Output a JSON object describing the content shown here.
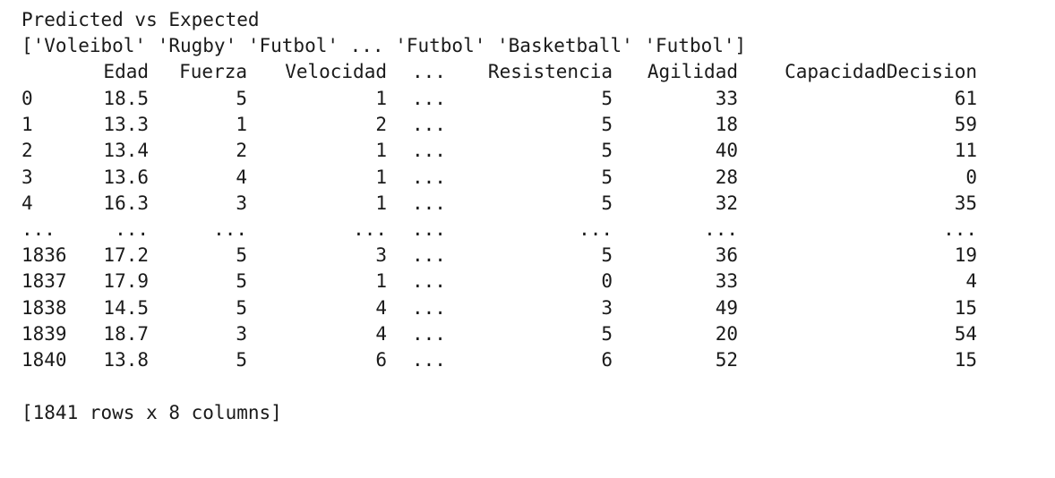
{
  "title": "Predicted vs Expected",
  "predictions_line": "['Voleibol' 'Rugby' 'Futbol' ... 'Futbol' 'Basketball' 'Futbol']",
  "table": {
    "headers": {
      "edad": "Edad",
      "fuerza": "Fuerza",
      "velocidad": "Velocidad",
      "ellipsis": "...",
      "resistencia": "Resistencia",
      "agilidad": "Agilidad",
      "capacidad": "CapacidadDecision"
    },
    "rows": [
      {
        "idx": "0",
        "edad": "18.5",
        "fuerza": "5",
        "velocidad": "1",
        "ellipsis": "...",
        "resistencia": "5",
        "agilidad": "33",
        "capacidad": "61"
      },
      {
        "idx": "1",
        "edad": "13.3",
        "fuerza": "1",
        "velocidad": "2",
        "ellipsis": "...",
        "resistencia": "5",
        "agilidad": "18",
        "capacidad": "59"
      },
      {
        "idx": "2",
        "edad": "13.4",
        "fuerza": "2",
        "velocidad": "1",
        "ellipsis": "...",
        "resistencia": "5",
        "agilidad": "40",
        "capacidad": "11"
      },
      {
        "idx": "3",
        "edad": "13.6",
        "fuerza": "4",
        "velocidad": "1",
        "ellipsis": "...",
        "resistencia": "5",
        "agilidad": "28",
        "capacidad": "0"
      },
      {
        "idx": "4",
        "edad": "16.3",
        "fuerza": "3",
        "velocidad": "1",
        "ellipsis": "...",
        "resistencia": "5",
        "agilidad": "32",
        "capacidad": "35"
      },
      {
        "idx": "...",
        "edad": "...",
        "fuerza": "...",
        "velocidad": "...",
        "ellipsis": "...",
        "resistencia": "...",
        "agilidad": "...",
        "capacidad": "..."
      },
      {
        "idx": "1836",
        "edad": "17.2",
        "fuerza": "5",
        "velocidad": "3",
        "ellipsis": "...",
        "resistencia": "5",
        "agilidad": "36",
        "capacidad": "19"
      },
      {
        "idx": "1837",
        "edad": "17.9",
        "fuerza": "5",
        "velocidad": "1",
        "ellipsis": "...",
        "resistencia": "0",
        "agilidad": "33",
        "capacidad": "4"
      },
      {
        "idx": "1838",
        "edad": "14.5",
        "fuerza": "5",
        "velocidad": "4",
        "ellipsis": "...",
        "resistencia": "3",
        "agilidad": "49",
        "capacidad": "15"
      },
      {
        "idx": "1839",
        "edad": "18.7",
        "fuerza": "3",
        "velocidad": "4",
        "ellipsis": "...",
        "resistencia": "5",
        "agilidad": "20",
        "capacidad": "54"
      },
      {
        "idx": "1840",
        "edad": "13.8",
        "fuerza": "5",
        "velocidad": "6",
        "ellipsis": "...",
        "resistencia": "6",
        "agilidad": "52",
        "capacidad": "15"
      }
    ]
  },
  "summary": "[1841 rows x 8 columns]"
}
